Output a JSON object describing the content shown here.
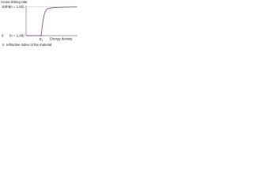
{
  "title": "Cross-linking rate",
  "y_top": {
    "value": "100%",
    "note": "(n = 1.52)"
  },
  "y_bottom": {
    "value": "0",
    "note": "(n = 1.48)"
  },
  "x_label": "Energy density",
  "threshold": {
    "main": "E",
    "sub": "c"
  },
  "footnote": "n: refractive index of the material"
}
